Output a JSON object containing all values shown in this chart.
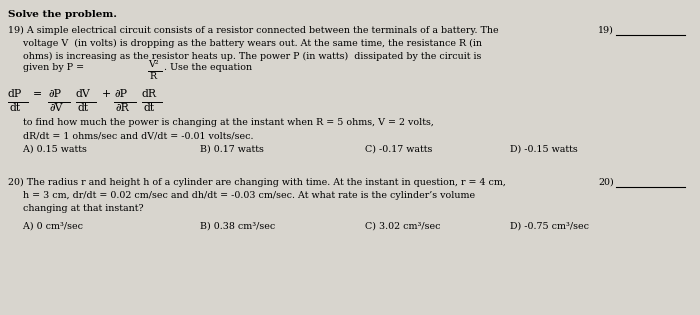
{
  "background_color": "#d8d5ce",
  "title": "Solve the problem.",
  "q19_line1": "19) A simple electrical circuit consists of a resistor connected between the terminals of a battery. The",
  "q19_line2": "     voltage V  (in volts) is dropping as the battery wears out. At the same time, the resistance R (in",
  "q19_line3": "     ohms) is increasing as the resistor heats up. The power P (in watts)  dissipated by the circuit is",
  "q19_given_prefix": "     given by P =",
  "q19_frac_num": "V²",
  "q19_frac_den": "R",
  "q19_given_suffix": ". Use the equation",
  "q19_find": "     to find how much the power is changing at the instant when R = 5 ohms, V = 2 volts,",
  "q19_drdt": "     dR/dt = 1 ohms/sec and dV/dt = -0.01 volts/sec.",
  "q19_A": "     A) 0.15 watts",
  "q19_B": "B) 0.17 watts",
  "q19_C": "C) -0.17 watts",
  "q19_D": "D) -0.15 watts",
  "q19_label": "19)",
  "q20_line1": "20) The radius r and height h of a cylinder are changing with time. At the instant in question, r = 4 cm,",
  "q20_line2": "     h = 3 cm, dr/dt = 0.02 cm/sec and dh/dt = -0.03 cm/sec. At what rate is the cylinder’s volume",
  "q20_line3": "     changing at that instant?",
  "q20_A": "     A) 0 cm³/sec",
  "q20_B": "B) 0.38 cm³/sec",
  "q20_C": "C) 3.02 cm³/sec",
  "q20_D": "D) -0.75 cm³/sec",
  "q20_label": "20)",
  "font_size": 6.8,
  "font_size_title": 7.5,
  "font_size_math": 7.8
}
